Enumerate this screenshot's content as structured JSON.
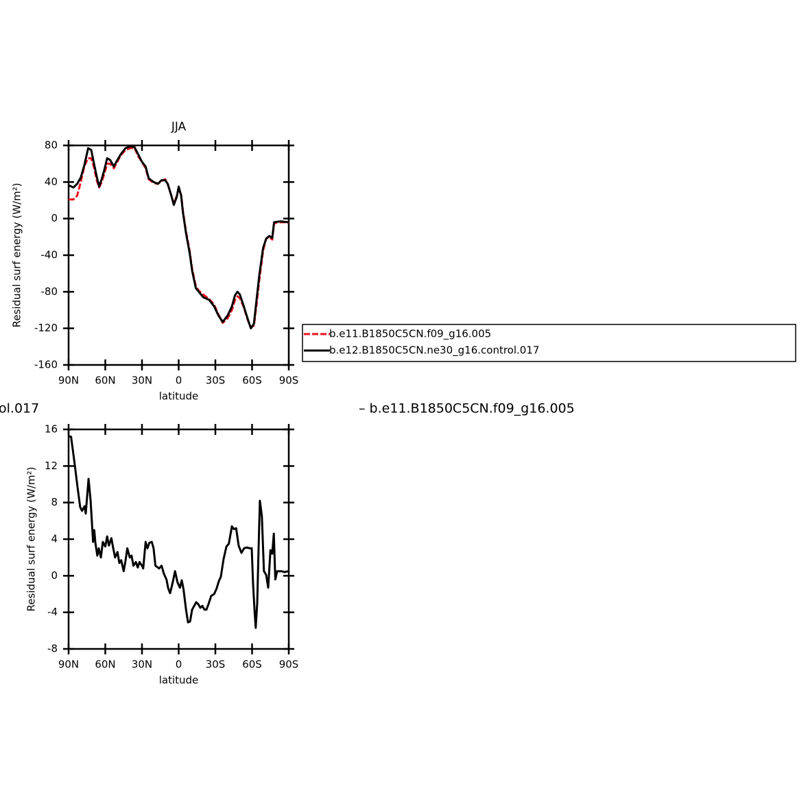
{
  "chart_data": [
    {
      "type": "line",
      "title": "JJA",
      "ylabel": "Residual surf energy (W/m²)",
      "xlabel": "latitude",
      "xlim": [
        90,
        -90
      ],
      "xticks": [
        {
          "value": 90,
          "label": "90N"
        },
        {
          "value": 60,
          "label": "60N"
        },
        {
          "value": 30,
          "label": "30N"
        },
        0,
        {
          "value": -30,
          "label": "30S"
        },
        {
          "value": -60,
          "label": "60S"
        },
        {
          "value": -90,
          "label": "90S"
        }
      ],
      "ylim": [
        -160,
        80
      ],
      "yticks": [
        -160,
        -120,
        -80,
        -40,
        0,
        40,
        80
      ],
      "legend": "right",
      "x": [
        90,
        86,
        83,
        80,
        77,
        74,
        71.5,
        69,
        67,
        65,
        63,
        61,
        58.5,
        56,
        53,
        51,
        47.5,
        43.5,
        39.5,
        36,
        33,
        30,
        27,
        24.5,
        20.5,
        17,
        14,
        11,
        9,
        6,
        4,
        1.5,
        0,
        -2,
        -3.5,
        -6,
        -9,
        -11,
        -14,
        -16.5,
        -20,
        -25,
        -29,
        -32.5,
        -36,
        -40,
        -43.5,
        -46,
        -48,
        -50,
        -53,
        -56.5,
        -59,
        -61.5,
        -63.5,
        -66,
        -69,
        -71.5,
        -74,
        -76.5,
        -78,
        -83,
        -86.5,
        -90
      ],
      "series": [
        {
          "name": "b.e11.B1850C5CN.f09_g16.005",
          "color": "#e8141c",
          "line_style": "dashed",
          "values": [
            21,
            21,
            25,
            40,
            58,
            66,
            66,
            55,
            42,
            34,
            40,
            48,
            60,
            60,
            55,
            60,
            69,
            75,
            77,
            77,
            68,
            62,
            55,
            43,
            39,
            38,
            41,
            43,
            38,
            25,
            16,
            25,
            33,
            26,
            8,
            -14,
            -36,
            -55,
            -74,
            -79,
            -83,
            -88,
            -94,
            -105,
            -114,
            -109,
            -100,
            -89,
            -85,
            -87,
            -96,
            -111,
            -119,
            -117,
            -96,
            -66,
            -35,
            -22,
            -20,
            -23,
            -5,
            -4,
            -4,
            -5
          ]
        },
        {
          "name": "b.e12.B1850C5CN.ne30_g16.control.017",
          "color": "#000000",
          "line_style": "solid",
          "values": [
            36.5,
            34,
            38,
            45,
            59,
            77,
            75,
            59,
            46,
            35,
            43,
            52,
            66,
            64,
            57,
            62,
            70,
            77,
            79,
            78,
            70,
            62,
            57,
            44,
            40,
            38,
            42,
            42,
            38,
            25,
            15,
            24,
            35,
            25,
            7,
            -16,
            -38,
            -57,
            -76,
            -80,
            -86,
            -89,
            -96,
            -106,
            -113,
            -106,
            -96,
            -84,
            -80,
            -83,
            -95,
            -110,
            -120,
            -115,
            -91,
            -61,
            -32,
            -22,
            -19,
            -21,
            -4,
            -3,
            -3.5,
            -4
          ]
        }
      ]
    },
    {
      "type": "line",
      "ylabel": "Residual surf energy (W/m²)",
      "xlabel": "latitude",
      "xlim": [
        90,
        -90
      ],
      "xticks": [
        {
          "value": 90,
          "label": "90N"
        },
        {
          "value": 60,
          "label": "60N"
        },
        {
          "value": 30,
          "label": "30N"
        },
        0,
        {
          "value": -30,
          "label": "30S"
        },
        {
          "value": -60,
          "label": "60S"
        },
        {
          "value": -90,
          "label": "90S"
        }
      ],
      "ylim": [
        -8,
        16
      ],
      "yticks": [
        -8,
        -4,
        0,
        4,
        8,
        12,
        16
      ],
      "x": [
        89.5,
        88,
        85,
        82.7,
        80.5,
        79,
        77,
        76,
        73.7,
        72,
        70,
        69,
        68,
        66.5,
        65.3,
        63.6,
        62,
        60,
        58.5,
        57,
        55,
        53.5,
        52,
        50,
        48.5,
        47,
        45,
        43.5,
        42,
        40,
        38.5,
        37,
        35,
        33.5,
        32,
        30,
        29,
        27,
        25.5,
        24,
        22,
        20.5,
        19,
        16,
        14,
        12,
        10,
        8.5,
        7,
        5,
        3,
        1,
        -1,
        -2.5,
        -4,
        -6,
        -7.6,
        -9.3,
        -11,
        -12.7,
        -14.3,
        -16,
        -17.7,
        -19.4,
        -21,
        -22.7,
        -24.4,
        -26.6,
        -29,
        -31,
        -32.8,
        -34.5,
        -36.7,
        -39,
        -41,
        -43.5,
        -45,
        -47,
        -49,
        -51.3,
        -53.5,
        -55.8,
        -58,
        -59.7,
        -60.8,
        -62,
        -63,
        -64.2,
        -65.3,
        -66.4,
        -68,
        -69.7,
        -71.5,
        -73.2,
        -75,
        -76.5,
        -77.8,
        -79,
        -80.5,
        -84,
        -86.7,
        -89.5
      ],
      "series": [
        {
          "color": "#000000",
          "line_style": "solid",
          "values": [
            15.25,
            15.2,
            12.2,
            9.7,
            7.5,
            7.1,
            7.6,
            6.8,
            10.6,
            8.2,
            3.7,
            5,
            3.5,
            2.2,
            3,
            2,
            3.7,
            3.2,
            4.3,
            3.3,
            4.1,
            3,
            2,
            2.6,
            1.4,
            1.7,
            0.5,
            1.6,
            3,
            2,
            2.2,
            1.1,
            1.5,
            0.9,
            1.5,
            1.1,
            0.8,
            3.7,
            3,
            3.6,
            3.7,
            3,
            1.1,
            0.8,
            1.1,
            0.2,
            -0.4,
            -1.4,
            -1.9,
            -0.8,
            0.5,
            -0.7,
            -1.3,
            -0.5,
            -1.5,
            -3.7,
            -5.1,
            -5,
            -3.7,
            -3.3,
            -2.9,
            -3.1,
            -3.5,
            -3.3,
            -3.7,
            -3.7,
            -3.1,
            -2.2,
            -2,
            -1.4,
            -0.6,
            -0.1,
            1.8,
            3.2,
            3.5,
            5.4,
            5.1,
            5.2,
            3.3,
            2.5,
            3,
            3.1,
            3,
            3,
            -0.8,
            -3.8,
            -5.7,
            -3,
            3,
            8.2,
            6.5,
            0.5,
            0.1,
            -1.3,
            2.8,
            2.4,
            4.6,
            -0.4,
            0.5,
            0.5,
            0.4,
            0.5
          ]
        }
      ]
    }
  ],
  "annotations": [
    "ol.017",
    "– b.e11.B1850C5CN.f09_g16.005"
  ]
}
